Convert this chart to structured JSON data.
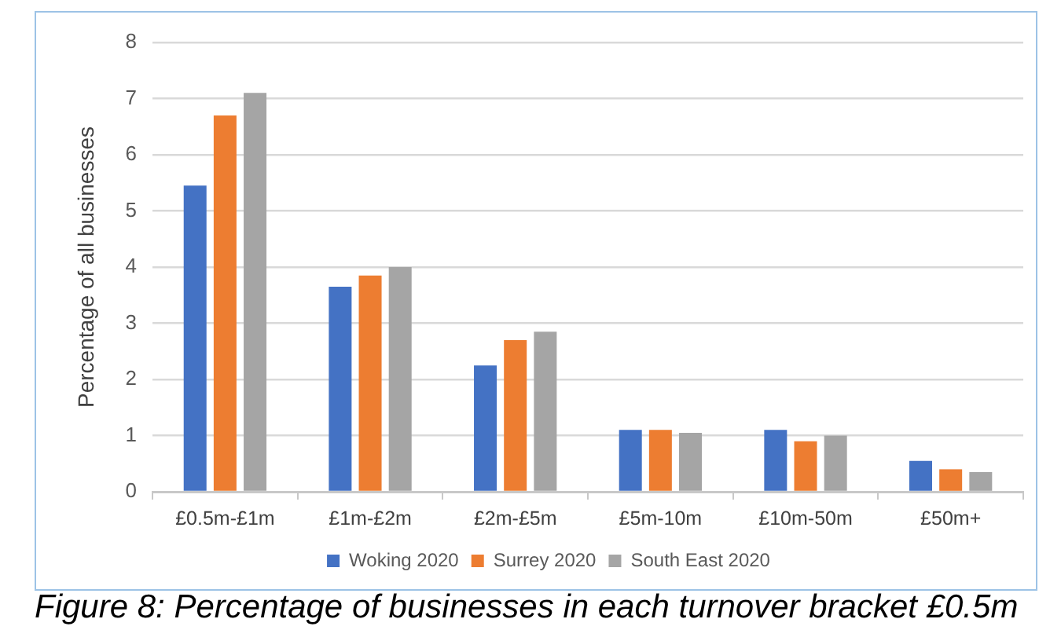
{
  "chart_data": {
    "type": "bar",
    "categories": [
      "£0.5m-£1m",
      "£1m-£2m",
      "£2m-£5m",
      "£5m-10m",
      "£10m-50m",
      "£50m+"
    ],
    "series": [
      {
        "name": "Woking 2020",
        "color": "#4472c4",
        "values": [
          5.45,
          3.65,
          2.25,
          1.1,
          1.1,
          0.55
        ]
      },
      {
        "name": "Surrey 2020",
        "color": "#ed7d31",
        "values": [
          6.7,
          3.85,
          2.7,
          1.1,
          0.9,
          0.4
        ]
      },
      {
        "name": "South East 2020",
        "color": "#a5a5a5",
        "values": [
          7.1,
          4.0,
          2.85,
          1.05,
          1.0,
          0.35
        ]
      }
    ],
    "ylabel": "Percentage of all businesses",
    "ylim": [
      0,
      8
    ],
    "yticks": [
      0,
      1,
      2,
      3,
      4,
      5,
      6,
      7,
      8
    ],
    "grid": "y",
    "legend": "bottom",
    "annotations": [
      "Figure 8: Percentage of businesses in each turnover bracket £0.5m"
    ]
  }
}
